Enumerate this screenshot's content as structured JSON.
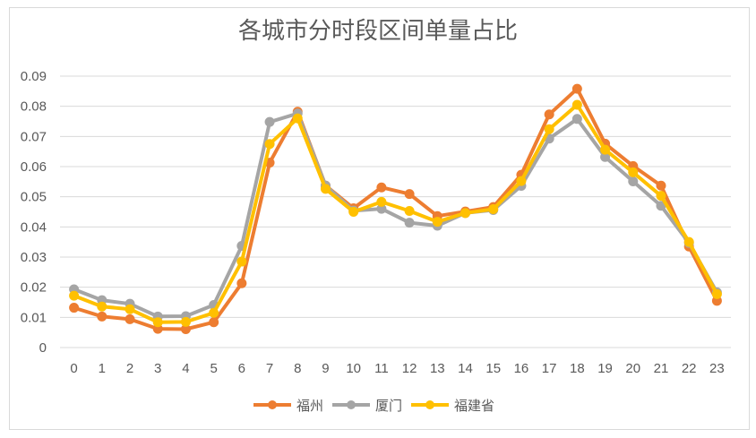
{
  "chart_data": {
    "type": "line",
    "title": "各城市分时段区间单量占比",
    "xlabel": "",
    "ylabel": "",
    "categories": [
      "0",
      "1",
      "2",
      "3",
      "4",
      "5",
      "6",
      "7",
      "8",
      "9",
      "10",
      "11",
      "12",
      "13",
      "14",
      "15",
      "16",
      "17",
      "18",
      "19",
      "20",
      "21",
      "22",
      "23"
    ],
    "ylim": [
      0,
      0.09
    ],
    "yticks": [
      "0.09",
      "0.08",
      "0.07",
      "0.06",
      "0.05",
      "0.04",
      "0.03",
      "0.02",
      "0.01",
      "0"
    ],
    "grid": true,
    "legend_position": "bottom",
    "series": [
      {
        "name": "福州",
        "color": "#ED7D31",
        "values": [
          0.0132,
          0.0103,
          0.0094,
          0.0062,
          0.0061,
          0.0084,
          0.0213,
          0.0613,
          0.0782,
          0.0537,
          0.0462,
          0.0531,
          0.0509,
          0.0436,
          0.0451,
          0.0466,
          0.0573,
          0.0773,
          0.0858,
          0.0676,
          0.0602,
          0.0537,
          0.0335,
          0.0155
        ]
      },
      {
        "name": "厦门",
        "color": "#A5A5A5",
        "values": [
          0.0193,
          0.0157,
          0.0145,
          0.0103,
          0.0104,
          0.0141,
          0.0337,
          0.0748,
          0.0776,
          0.0537,
          0.0454,
          0.046,
          0.0414,
          0.0404,
          0.0446,
          0.0456,
          0.0536,
          0.0693,
          0.0758,
          0.0632,
          0.0551,
          0.047,
          0.0347,
          0.0183
        ]
      },
      {
        "name": "福建省",
        "color": "#FFC000",
        "values": [
          0.0172,
          0.0136,
          0.0127,
          0.0084,
          0.0085,
          0.0115,
          0.0285,
          0.0675,
          0.076,
          0.0526,
          0.045,
          0.0483,
          0.0453,
          0.0417,
          0.0446,
          0.0459,
          0.0552,
          0.0724,
          0.0805,
          0.0656,
          0.0581,
          0.0503,
          0.035,
          0.0177
        ]
      }
    ]
  }
}
